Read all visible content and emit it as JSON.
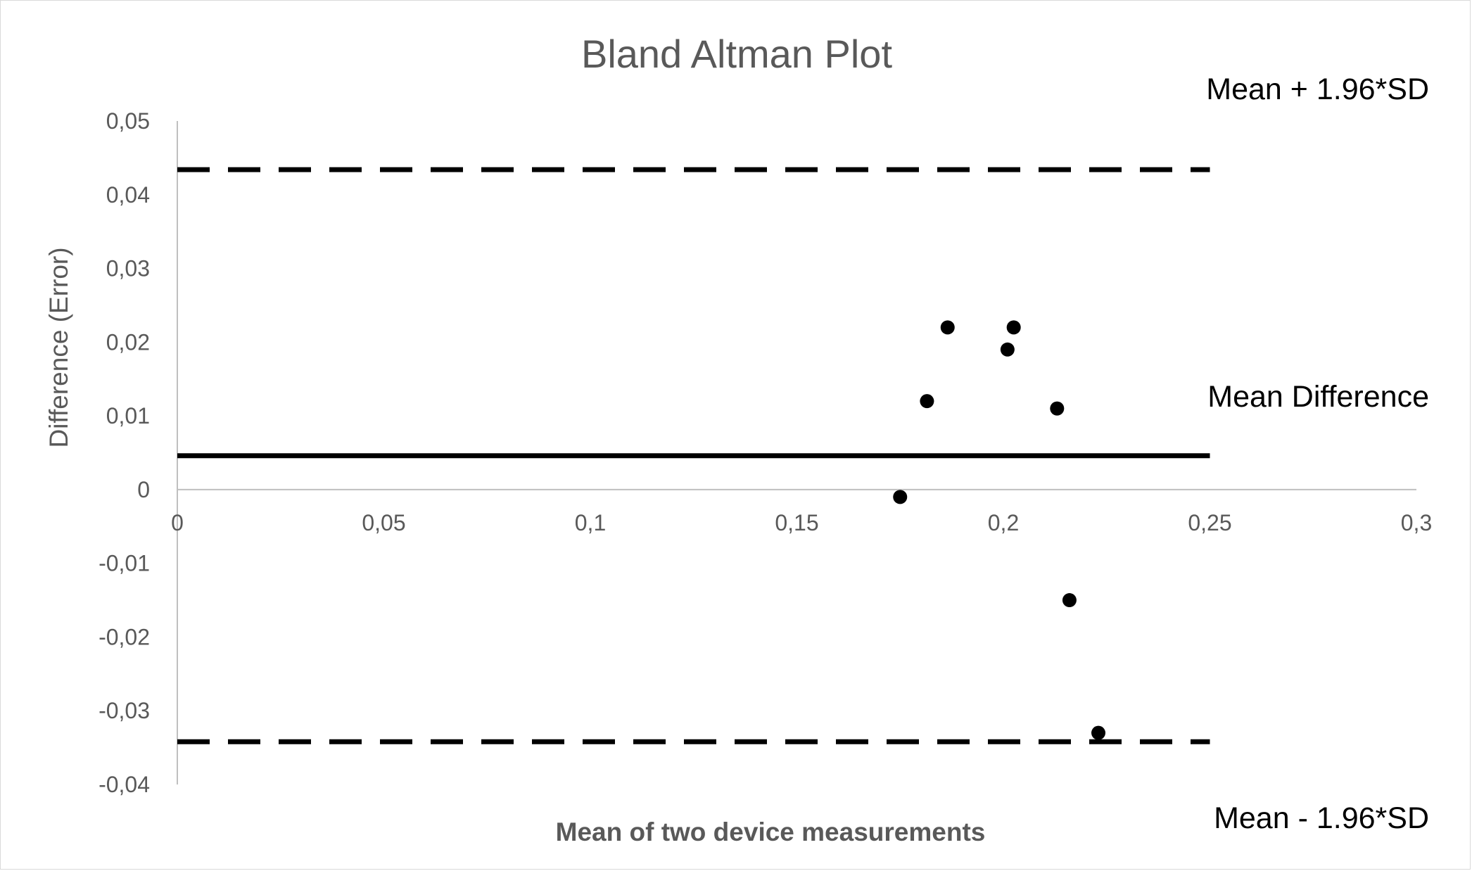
{
  "chart_data": {
    "type": "scatter",
    "title": "Bland Altman Plot",
    "xlabel": "Mean of two device measurements",
    "ylabel": "Difference (Error)",
    "xlim": [
      0,
      0.3
    ],
    "ylim": [
      -0.04,
      0.05
    ],
    "x_ticks": [
      {
        "value": 0,
        "label": "0"
      },
      {
        "value": 0.05,
        "label": "0,05"
      },
      {
        "value": 0.1,
        "label": "0,1"
      },
      {
        "value": 0.15,
        "label": "0,15"
      },
      {
        "value": 0.2,
        "label": "0,2"
      },
      {
        "value": 0.25,
        "label": "0,25"
      },
      {
        "value": 0.3,
        "label": "0,3"
      }
    ],
    "y_ticks": [
      {
        "value": 0.05,
        "label": "0,05"
      },
      {
        "value": 0.04,
        "label": "0,04"
      },
      {
        "value": 0.03,
        "label": "0,03"
      },
      {
        "value": 0.02,
        "label": "0,02"
      },
      {
        "value": 0.01,
        "label": "0,01"
      },
      {
        "value": 0,
        "label": "0"
      },
      {
        "value": -0.01,
        "label": "-0,01"
      },
      {
        "value": -0.02,
        "label": "-0,02"
      },
      {
        "value": -0.03,
        "label": "-0,03"
      },
      {
        "value": -0.04,
        "label": "-0,04"
      }
    ],
    "grid": false,
    "points": [
      {
        "x": 0.175,
        "y": -0.001
      },
      {
        "x": 0.1815,
        "y": 0.012
      },
      {
        "x": 0.1865,
        "y": 0.022
      },
      {
        "x": 0.201,
        "y": 0.019
      },
      {
        "x": 0.2025,
        "y": 0.022
      },
      {
        "x": 0.213,
        "y": 0.011
      },
      {
        "x": 0.216,
        "y": -0.015
      },
      {
        "x": 0.223,
        "y": -0.033
      }
    ],
    "reference_lines": [
      {
        "name": "Mean + 1.96*SD",
        "y": 0.0434,
        "x_range": [
          0,
          0.25
        ],
        "style": "dashed"
      },
      {
        "name": "Mean Difference",
        "y": 0.0046,
        "x_range": [
          0,
          0.25
        ],
        "style": "solid"
      },
      {
        "name": "Mean - 1.96*SD",
        "y": -0.0342,
        "x_range": [
          0,
          0.25
        ],
        "style": "dashed"
      }
    ],
    "colors": {
      "points": "#000000",
      "lines": "#000000",
      "axes": "#bfbfbf",
      "text": "#595959"
    }
  }
}
